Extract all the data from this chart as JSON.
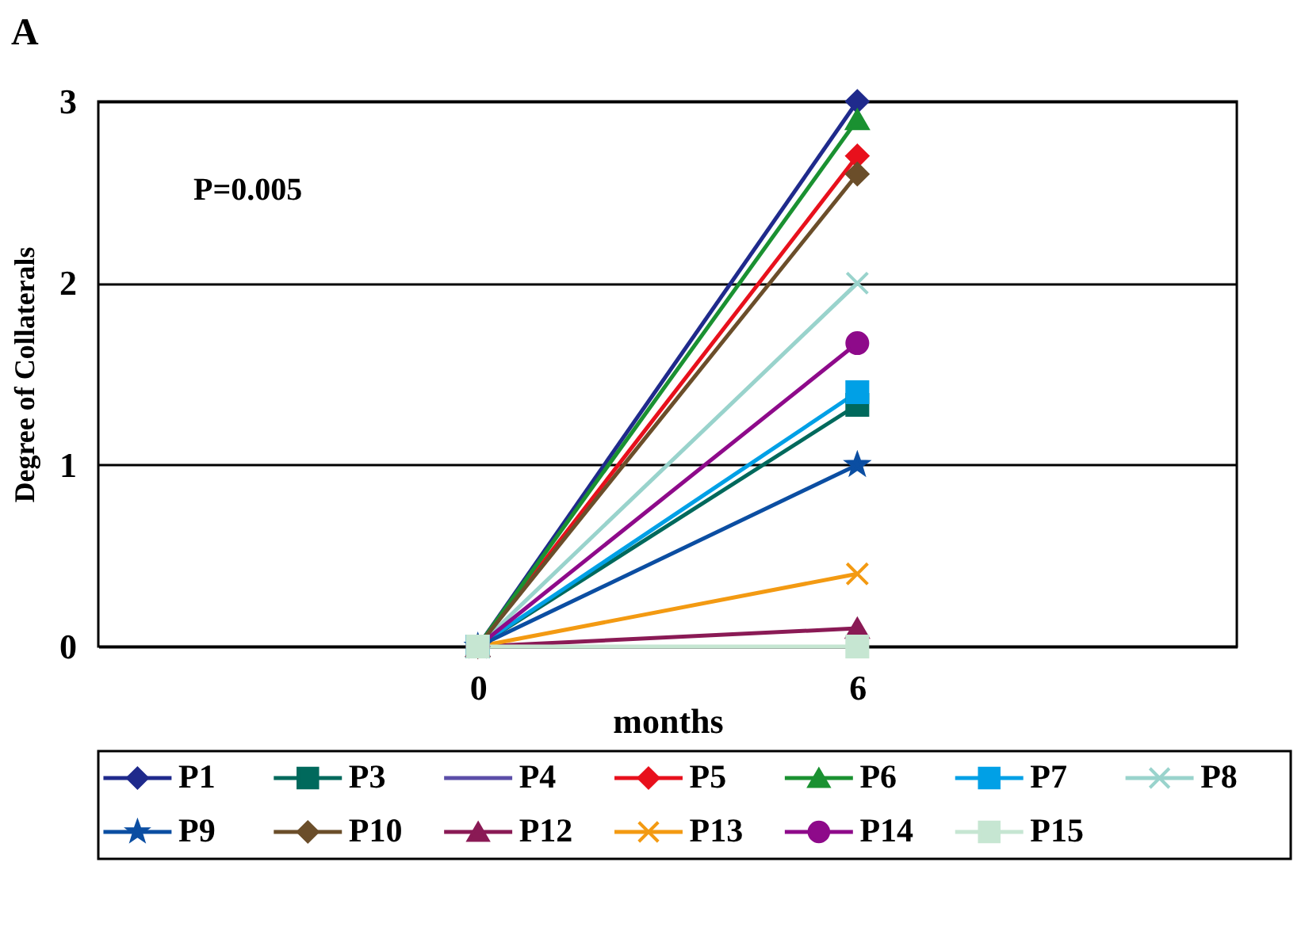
{
  "chart_data": {
    "type": "line",
    "title": "A",
    "xlabel": "months",
    "ylabel": "Degree of Collaterals",
    "annotations": [
      "P=0.005"
    ],
    "categories": [
      "0",
      "6"
    ],
    "ylim": [
      0,
      3
    ],
    "yticks": [
      0,
      1,
      2,
      3
    ],
    "grid": "y",
    "legend": "bottom",
    "series": [
      {
        "name": "P1",
        "color": "#1f2a8c",
        "marker": "diamond",
        "values": [
          0,
          3
        ]
      },
      {
        "name": "P3",
        "color": "#00695c",
        "marker": "square",
        "values": [
          0,
          1.33
        ]
      },
      {
        "name": "P4",
        "color": "#5b4ea8",
        "marker": "none",
        "values": [
          null,
          null
        ]
      },
      {
        "name": "P5",
        "color": "#e8101c",
        "marker": "diamond",
        "values": [
          0,
          2.7
        ]
      },
      {
        "name": "P6",
        "color": "#1a9131",
        "marker": "triangle",
        "values": [
          0,
          2.9
        ]
      },
      {
        "name": "P7",
        "color": "#00a0e6",
        "marker": "square",
        "values": [
          0,
          1.4
        ]
      },
      {
        "name": "P8",
        "color": "#99d3cc",
        "marker": "cross",
        "values": [
          0,
          2
        ]
      },
      {
        "name": "P9",
        "color": "#0b4ea2",
        "marker": "star",
        "values": [
          0,
          1
        ]
      },
      {
        "name": "P10",
        "color": "#6b4e2a",
        "marker": "diamond",
        "values": [
          0,
          2.6
        ]
      },
      {
        "name": "P12",
        "color": "#8a1a55",
        "marker": "triangle",
        "values": [
          0,
          0.1
        ]
      },
      {
        "name": "P13",
        "color": "#f39a12",
        "marker": "cross",
        "values": [
          0,
          0.4
        ]
      },
      {
        "name": "P14",
        "color": "#8e0a8a",
        "marker": "circle",
        "values": [
          0,
          1.67
        ]
      },
      {
        "name": "P15",
        "color": "#c6e6d2",
        "marker": "square",
        "values": [
          0,
          0
        ]
      }
    ]
  }
}
